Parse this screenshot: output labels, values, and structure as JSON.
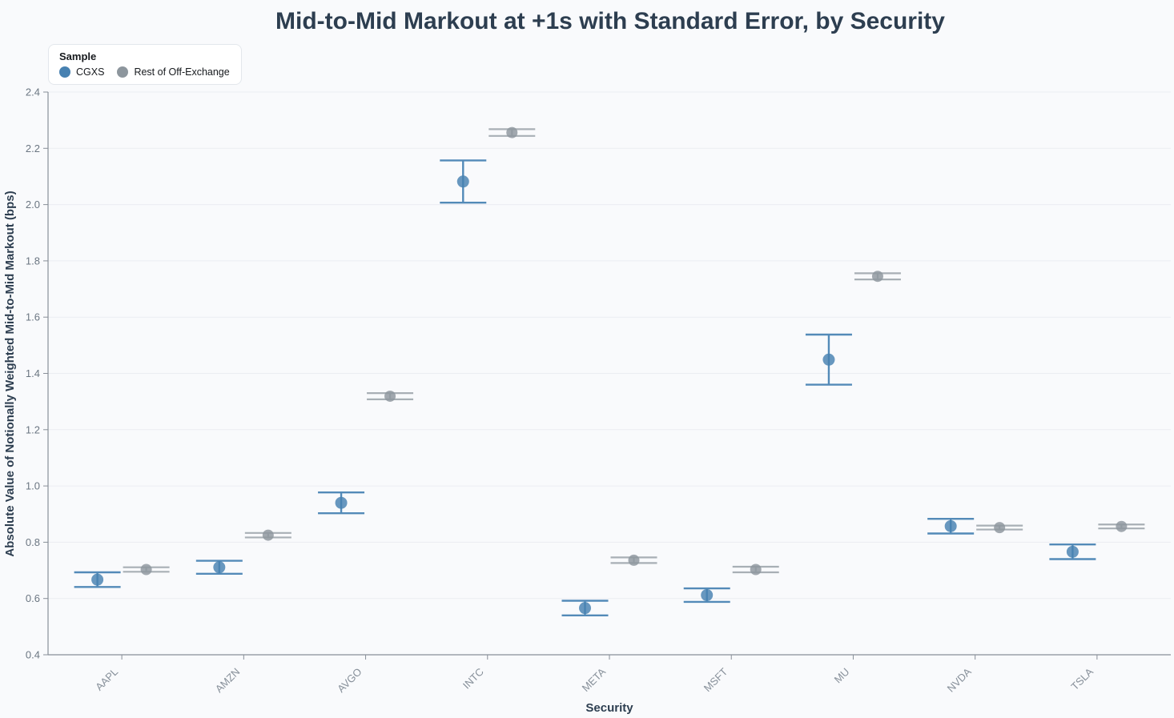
{
  "chart_data": {
    "type": "scatter",
    "title": "Mid-to-Mid Markout at +1s with Standard Error, by Security",
    "xlabel": "Security",
    "ylabel": "Absolute Value of Notionally Weighted Mid-to-Mid Markout (bps)",
    "legend_title": "Sample",
    "categories": [
      "AAPL",
      "AMZN",
      "AVGO",
      "INTC",
      "META",
      "MSFT",
      "MU",
      "NVDA",
      "TSLA"
    ],
    "ylim": [
      0.4,
      2.4
    ],
    "ytick_step": 0.2,
    "ytick_labels": [
      "0.4",
      "0.6",
      "0.8",
      "1.0",
      "1.2",
      "1.4",
      "1.6",
      "1.8",
      "2.0",
      "2.2",
      "2.4"
    ],
    "grid": true,
    "legend_position": "top-left",
    "error_bar_style": "mean with standard-error caps",
    "series": [
      {
        "name": "CGXS",
        "marker_color": "#4781b1",
        "line_color": "#538ab8",
        "values": [
          0.667,
          0.711,
          0.94,
          2.082,
          0.566,
          0.612,
          1.449,
          0.857,
          0.766
        ],
        "stderr": [
          0.026,
          0.023,
          0.037,
          0.075,
          0.026,
          0.024,
          0.089,
          0.026,
          0.026
        ]
      },
      {
        "name": "Rest of Off-Exchange",
        "marker_color": "#8d969d",
        "line_color": "#a8afb5",
        "values": [
          0.703,
          0.825,
          1.319,
          2.256,
          0.736,
          0.703,
          1.745,
          0.852,
          0.856
        ],
        "stderr": [
          0.008,
          0.008,
          0.011,
          0.012,
          0.01,
          0.01,
          0.011,
          0.007,
          0.007
        ]
      }
    ],
    "colors": {
      "background": "#f9fafc",
      "gridline": "#ebedf2",
      "axis_line": "#888f98",
      "title_text": "#2d3e50"
    }
  }
}
